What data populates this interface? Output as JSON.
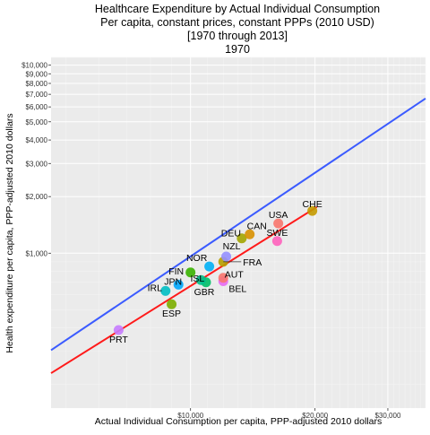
{
  "chart_data": {
    "type": "scatter",
    "title_lines": [
      "Healthcare Expenditure by Actual Individual Consumption",
      "Per capita, constant prices, constant PPPs (2010 USD)",
      "[1970 through 2013]",
      "1970"
    ],
    "xlabel": "Actual Individual Consumption per capita, PPP-adjusted 2010 dollars",
    "ylabel": "Health expenditure per capita, PPP-adjusted 2010 dollars",
    "x_scale": "log",
    "y_scale": "log",
    "xlim": [
      4600,
      37000
    ],
    "ylim": [
      150,
      11000
    ],
    "x_ticks": [
      {
        "value": 10000,
        "label": "$10,000"
      },
      {
        "value": 20000,
        "label": "$20,000"
      },
      {
        "value": 30000,
        "label": "$30,000"
      }
    ],
    "y_ticks": [
      {
        "value": 1000,
        "label": "$1,000"
      },
      {
        "value": 2000,
        "label": "$2,000"
      },
      {
        "value": 3000,
        "label": "$3,000"
      },
      {
        "value": 4000,
        "label": "$4,000"
      },
      {
        "value": 5000,
        "label": "$5,000"
      },
      {
        "value": 6000,
        "label": "$6,000"
      },
      {
        "value": 7000,
        "label": "$7,000"
      },
      {
        "value": 8000,
        "label": "$8,000"
      },
      {
        "value": 9000,
        "label": "$9,000"
      },
      {
        "value": 10000,
        "label": "$10,000"
      }
    ],
    "grid": true,
    "points": [
      {
        "label": "PRT",
        "x": 6700,
        "y": 390,
        "color": "#c77cff"
      },
      {
        "label": "ESP",
        "x": 9000,
        "y": 535,
        "color": "#7cae00"
      },
      {
        "label": "IRL",
        "x": 8700,
        "y": 630,
        "color": "#00bfc4"
      },
      {
        "label": "JPN",
        "x": 9350,
        "y": 680,
        "color": "#00a9ff"
      },
      {
        "label": "GBR",
        "x": 10900,
        "y": 700,
        "color": "#00be67"
      },
      {
        "label": "ISL",
        "x": 10600,
        "y": 720,
        "color": "#00c08b"
      },
      {
        "label": "FIN",
        "x": 10000,
        "y": 790,
        "color": "#3ab200"
      },
      {
        "label": "BEL",
        "x": 12000,
        "y": 710,
        "color": "#e76bf3"
      },
      {
        "label": "AUT",
        "x": 12000,
        "y": 740,
        "color": "#f8766d"
      },
      {
        "label": "NOR",
        "x": 11100,
        "y": 850,
        "color": "#00b0f6"
      },
      {
        "label": "FRA",
        "x": 12000,
        "y": 900,
        "color": "#b79f00"
      },
      {
        "label": "NZL",
        "x": 12200,
        "y": 960,
        "color": "#9590ff"
      },
      {
        "label": "DEU",
        "x": 13300,
        "y": 1200,
        "color": "#a3a500"
      },
      {
        "label": "CAN",
        "x": 13900,
        "y": 1260,
        "color": "#d89000"
      },
      {
        "label": "USA",
        "x": 16300,
        "y": 1440,
        "color": "#f8766d"
      },
      {
        "label": "SWE",
        "x": 16200,
        "y": 1160,
        "color": "#ff62bc"
      },
      {
        "label": "CHE",
        "x": 19700,
        "y": 1680,
        "color": "#c49a00"
      }
    ],
    "fit_lines": [
      {
        "color": "#3b5bff",
        "from": {
          "x": 4600,
          "y": 305
        },
        "to": {
          "x": 37000,
          "y": 6650
        }
      },
      {
        "color": "#ff1a1a",
        "from": {
          "x": 4600,
          "y": 230
        },
        "to": {
          "x": 20200,
          "y": 1760
        }
      }
    ]
  }
}
